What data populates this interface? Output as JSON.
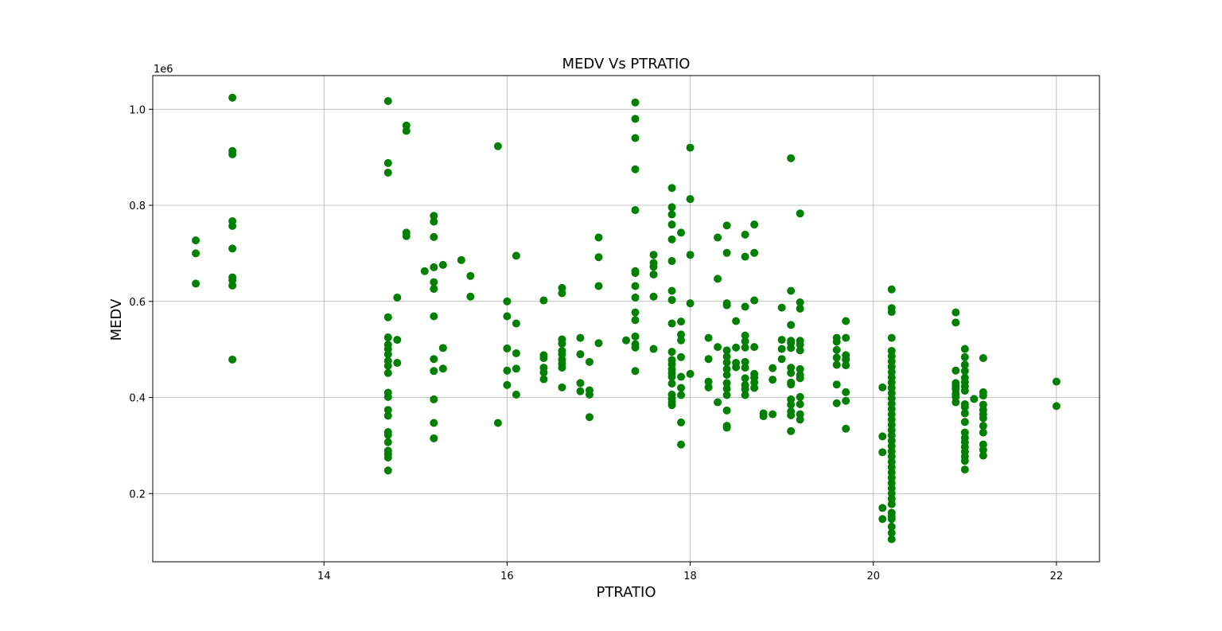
{
  "chart_data": {
    "type": "scatter",
    "title": "MEDV Vs PTRATIO",
    "xlabel": "PTRATIO",
    "ylabel": "MEDV",
    "y_offset_label": "1e6",
    "xlim": [
      12.13,
      22.47
    ],
    "ylim": [
      58000,
      1070000
    ],
    "x_ticks": [
      14,
      16,
      18,
      20,
      22
    ],
    "x_tick_labels": [
      "14",
      "16",
      "18",
      "20",
      "22"
    ],
    "y_ticks": [
      200000,
      400000,
      600000,
      800000,
      1000000
    ],
    "y_tick_labels": [
      "0.2",
      "0.4",
      "0.6",
      "0.8",
      "1.0"
    ],
    "grid": true,
    "marker_color": "#008000",
    "points": [
      [
        12.6,
        727000
      ],
      [
        12.6,
        700000
      ],
      [
        12.6,
        637000
      ],
      [
        13.0,
        1024000
      ],
      [
        13.0,
        913000
      ],
      [
        13.0,
        906000
      ],
      [
        13.0,
        767000
      ],
      [
        13.0,
        757000
      ],
      [
        13.0,
        710000
      ],
      [
        13.0,
        650000
      ],
      [
        13.0,
        644000
      ],
      [
        13.0,
        633000
      ],
      [
        13.0,
        479000
      ],
      [
        14.7,
        1017000
      ],
      [
        14.7,
        888000
      ],
      [
        14.7,
        868000
      ],
      [
        14.7,
        567000
      ],
      [
        14.7,
        525000
      ],
      [
        14.7,
        510000
      ],
      [
        14.7,
        501000
      ],
      [
        14.7,
        490000
      ],
      [
        14.7,
        476000
      ],
      [
        14.7,
        466000
      ],
      [
        14.7,
        451000
      ],
      [
        14.7,
        410000
      ],
      [
        14.7,
        401000
      ],
      [
        14.7,
        374000
      ],
      [
        14.7,
        362000
      ],
      [
        14.7,
        328000
      ],
      [
        14.7,
        322000
      ],
      [
        14.7,
        307000
      ],
      [
        14.7,
        289000
      ],
      [
        14.7,
        282000
      ],
      [
        14.7,
        275000
      ],
      [
        14.7,
        248000
      ],
      [
        14.8,
        608000
      ],
      [
        14.8,
        520000
      ],
      [
        14.8,
        472000
      ],
      [
        14.9,
        966000
      ],
      [
        14.9,
        955000
      ],
      [
        14.9,
        743000
      ],
      [
        14.9,
        736000
      ],
      [
        15.1,
        663000
      ],
      [
        15.2,
        778000
      ],
      [
        15.2,
        766000
      ],
      [
        15.2,
        734000
      ],
      [
        15.2,
        671000
      ],
      [
        15.2,
        640000
      ],
      [
        15.2,
        626000
      ],
      [
        15.2,
        569000
      ],
      [
        15.2,
        480000
      ],
      [
        15.2,
        455000
      ],
      [
        15.2,
        396000
      ],
      [
        15.2,
        347000
      ],
      [
        15.2,
        315000
      ],
      [
        15.3,
        676000
      ],
      [
        15.3,
        503000
      ],
      [
        15.3,
        460000
      ],
      [
        15.5,
        686000
      ],
      [
        15.6,
        653000
      ],
      [
        15.6,
        610000
      ],
      [
        15.9,
        923000
      ],
      [
        15.9,
        347000
      ],
      [
        16.0,
        600000
      ],
      [
        16.0,
        569000
      ],
      [
        16.0,
        502000
      ],
      [
        16.0,
        456000
      ],
      [
        16.0,
        426000
      ],
      [
        16.1,
        695000
      ],
      [
        16.1,
        554000
      ],
      [
        16.1,
        492000
      ],
      [
        16.1,
        460000
      ],
      [
        16.1,
        406000
      ],
      [
        16.4,
        602000
      ],
      [
        16.4,
        488000
      ],
      [
        16.4,
        482000
      ],
      [
        16.4,
        462000
      ],
      [
        16.4,
        452000
      ],
      [
        16.4,
        438000
      ],
      [
        16.6,
        628000
      ],
      [
        16.6,
        617000
      ],
      [
        16.6,
        521000
      ],
      [
        16.6,
        512000
      ],
      [
        16.6,
        497000
      ],
      [
        16.6,
        490000
      ],
      [
        16.6,
        479000
      ],
      [
        16.6,
        470000
      ],
      [
        16.6,
        462000
      ],
      [
        16.6,
        421000
      ],
      [
        16.8,
        524000
      ],
      [
        16.8,
        490000
      ],
      [
        16.8,
        430000
      ],
      [
        16.8,
        413000
      ],
      [
        16.9,
        474000
      ],
      [
        16.9,
        415000
      ],
      [
        16.9,
        406000
      ],
      [
        16.9,
        359000
      ],
      [
        17.0,
        733000
      ],
      [
        17.0,
        692000
      ],
      [
        17.0,
        632000
      ],
      [
        17.0,
        513000
      ],
      [
        17.3,
        519000
      ],
      [
        17.4,
        1014000
      ],
      [
        17.4,
        980000
      ],
      [
        17.4,
        940000
      ],
      [
        17.4,
        875000
      ],
      [
        17.4,
        790000
      ],
      [
        17.4,
        663000
      ],
      [
        17.4,
        659000
      ],
      [
        17.4,
        632000
      ],
      [
        17.4,
        608000
      ],
      [
        17.4,
        577000
      ],
      [
        17.4,
        561000
      ],
      [
        17.4,
        527000
      ],
      [
        17.4,
        511000
      ],
      [
        17.4,
        504000
      ],
      [
        17.4,
        455000
      ],
      [
        17.6,
        697000
      ],
      [
        17.6,
        680000
      ],
      [
        17.6,
        672000
      ],
      [
        17.6,
        656000
      ],
      [
        17.6,
        610000
      ],
      [
        17.6,
        501000
      ],
      [
        17.8,
        836000
      ],
      [
        17.8,
        796000
      ],
      [
        17.8,
        781000
      ],
      [
        17.8,
        760000
      ],
      [
        17.8,
        729000
      ],
      [
        17.8,
        684000
      ],
      [
        17.8,
        622000
      ],
      [
        17.8,
        603000
      ],
      [
        17.8,
        554000
      ],
      [
        17.8,
        495000
      ],
      [
        17.8,
        478000
      ],
      [
        17.8,
        469000
      ],
      [
        17.8,
        459000
      ],
      [
        17.8,
        451000
      ],
      [
        17.8,
        443000
      ],
      [
        17.8,
        429000
      ],
      [
        17.8,
        406000
      ],
      [
        17.8,
        397000
      ],
      [
        17.8,
        390000
      ],
      [
        17.8,
        384000
      ],
      [
        17.9,
        743000
      ],
      [
        17.9,
        558000
      ],
      [
        17.9,
        531000
      ],
      [
        17.9,
        519000
      ],
      [
        17.9,
        484000
      ],
      [
        17.9,
        443000
      ],
      [
        17.9,
        420000
      ],
      [
        17.9,
        405000
      ],
      [
        17.9,
        348000
      ],
      [
        17.9,
        302000
      ],
      [
        18.0,
        920000
      ],
      [
        18.0,
        813000
      ],
      [
        18.0,
        697000
      ],
      [
        18.0,
        596000
      ],
      [
        18.0,
        449000
      ],
      [
        18.2,
        524000
      ],
      [
        18.2,
        480000
      ],
      [
        18.2,
        433000
      ],
      [
        18.2,
        421000
      ],
      [
        18.3,
        733000
      ],
      [
        18.3,
        647000
      ],
      [
        18.3,
        505000
      ],
      [
        18.3,
        390000
      ],
      [
        18.4,
        758000
      ],
      [
        18.4,
        701000
      ],
      [
        18.4,
        596000
      ],
      [
        18.4,
        592000
      ],
      [
        18.4,
        498000
      ],
      [
        18.4,
        485000
      ],
      [
        18.4,
        473000
      ],
      [
        18.4,
        459000
      ],
      [
        18.4,
        447000
      ],
      [
        18.4,
        430000
      ],
      [
        18.4,
        418000
      ],
      [
        18.4,
        405000
      ],
      [
        18.4,
        373000
      ],
      [
        18.4,
        341000
      ],
      [
        18.4,
        337000
      ],
      [
        18.5,
        559000
      ],
      [
        18.5,
        504000
      ],
      [
        18.5,
        472000
      ],
      [
        18.5,
        463000
      ],
      [
        18.6,
        739000
      ],
      [
        18.6,
        693000
      ],
      [
        18.6,
        589000
      ],
      [
        18.6,
        529000
      ],
      [
        18.6,
        517000
      ],
      [
        18.6,
        504000
      ],
      [
        18.6,
        474000
      ],
      [
        18.6,
        462000
      ],
      [
        18.6,
        440000
      ],
      [
        18.6,
        426000
      ],
      [
        18.6,
        417000
      ],
      [
        18.6,
        405000
      ],
      [
        18.7,
        760000
      ],
      [
        18.7,
        701000
      ],
      [
        18.7,
        602000
      ],
      [
        18.7,
        505000
      ],
      [
        18.7,
        449000
      ],
      [
        18.7,
        441000
      ],
      [
        18.7,
        431000
      ],
      [
        18.7,
        420000
      ],
      [
        18.8,
        367000
      ],
      [
        18.8,
        361000
      ],
      [
        18.9,
        461000
      ],
      [
        18.9,
        437000
      ],
      [
        18.9,
        365000
      ],
      [
        19.0,
        587000
      ],
      [
        19.0,
        520000
      ],
      [
        19.0,
        501000
      ],
      [
        19.0,
        480000
      ],
      [
        19.1,
        898000
      ],
      [
        19.1,
        622000
      ],
      [
        19.1,
        551000
      ],
      [
        19.1,
        518000
      ],
      [
        19.1,
        513000
      ],
      [
        19.1,
        503000
      ],
      [
        19.1,
        462000
      ],
      [
        19.1,
        451000
      ],
      [
        19.1,
        431000
      ],
      [
        19.1,
        427000
      ],
      [
        19.1,
        396000
      ],
      [
        19.1,
        385000
      ],
      [
        19.1,
        371000
      ],
      [
        19.1,
        363000
      ],
      [
        19.1,
        330000
      ],
      [
        19.2,
        783000
      ],
      [
        19.2,
        598000
      ],
      [
        19.2,
        585000
      ],
      [
        19.2,
        518000
      ],
      [
        19.2,
        510000
      ],
      [
        19.2,
        498000
      ],
      [
        19.2,
        459000
      ],
      [
        19.2,
        447000
      ],
      [
        19.2,
        440000
      ],
      [
        19.2,
        401000
      ],
      [
        19.2,
        386000
      ],
      [
        19.2,
        365000
      ],
      [
        19.2,
        354000
      ],
      [
        19.6,
        524000
      ],
      [
        19.6,
        516000
      ],
      [
        19.6,
        499000
      ],
      [
        19.6,
        483000
      ],
      [
        19.6,
        468000
      ],
      [
        19.6,
        427000
      ],
      [
        19.6,
        388000
      ],
      [
        19.7,
        559000
      ],
      [
        19.7,
        524000
      ],
      [
        19.7,
        488000
      ],
      [
        19.7,
        479000
      ],
      [
        19.7,
        467000
      ],
      [
        19.7,
        411000
      ],
      [
        19.7,
        393000
      ],
      [
        19.7,
        335000
      ],
      [
        20.1,
        421000
      ],
      [
        20.1,
        319000
      ],
      [
        20.1,
        286000
      ],
      [
        20.1,
        170000
      ],
      [
        20.1,
        147000
      ],
      [
        20.2,
        625000
      ],
      [
        20.2,
        586000
      ],
      [
        20.2,
        578000
      ],
      [
        20.2,
        524000
      ],
      [
        20.2,
        497000
      ],
      [
        20.2,
        486000
      ],
      [
        20.2,
        475000
      ],
      [
        20.2,
        464000
      ],
      [
        20.2,
        453000
      ],
      [
        20.2,
        442000
      ],
      [
        20.2,
        431000
      ],
      [
        20.2,
        420000
      ],
      [
        20.2,
        409000
      ],
      [
        20.2,
        398000
      ],
      [
        20.2,
        387000
      ],
      [
        20.2,
        376000
      ],
      [
        20.2,
        365000
      ],
      [
        20.2,
        354000
      ],
      [
        20.2,
        343000
      ],
      [
        20.2,
        332000
      ],
      [
        20.2,
        321000
      ],
      [
        20.2,
        310000
      ],
      [
        20.2,
        299000
      ],
      [
        20.2,
        288000
      ],
      [
        20.2,
        277000
      ],
      [
        20.2,
        266000
      ],
      [
        20.2,
        255000
      ],
      [
        20.2,
        244000
      ],
      [
        20.2,
        233000
      ],
      [
        20.2,
        222000
      ],
      [
        20.2,
        211000
      ],
      [
        20.2,
        200000
      ],
      [
        20.2,
        189000
      ],
      [
        20.2,
        178000
      ],
      [
        20.2,
        160000
      ],
      [
        20.2,
        152000
      ],
      [
        20.2,
        147000
      ],
      [
        20.2,
        131000
      ],
      [
        20.2,
        118000
      ],
      [
        20.2,
        105000
      ],
      [
        20.9,
        577000
      ],
      [
        20.9,
        556000
      ],
      [
        20.9,
        456000
      ],
      [
        20.9,
        430000
      ],
      [
        20.9,
        423000
      ],
      [
        20.9,
        417000
      ],
      [
        20.9,
        408000
      ],
      [
        20.9,
        401000
      ],
      [
        20.9,
        390000
      ],
      [
        21.0,
        501000
      ],
      [
        21.0,
        484000
      ],
      [
        21.0,
        468000
      ],
      [
        21.0,
        455000
      ],
      [
        21.0,
        441000
      ],
      [
        21.0,
        432000
      ],
      [
        21.0,
        423000
      ],
      [
        21.0,
        414000
      ],
      [
        21.0,
        386000
      ],
      [
        21.0,
        380000
      ],
      [
        21.0,
        367000
      ],
      [
        21.0,
        349000
      ],
      [
        21.0,
        327000
      ],
      [
        21.0,
        316000
      ],
      [
        21.0,
        307000
      ],
      [
        21.0,
        297000
      ],
      [
        21.0,
        287000
      ],
      [
        21.0,
        277000
      ],
      [
        21.0,
        268000
      ],
      [
        21.0,
        250000
      ],
      [
        21.1,
        397000
      ],
      [
        21.2,
        482000
      ],
      [
        21.2,
        411000
      ],
      [
        21.2,
        404000
      ],
      [
        21.2,
        385000
      ],
      [
        21.2,
        374000
      ],
      [
        21.2,
        365000
      ],
      [
        21.2,
        357000
      ],
      [
        21.2,
        341000
      ],
      [
        21.2,
        327000
      ],
      [
        21.2,
        302000
      ],
      [
        21.2,
        291000
      ],
      [
        21.2,
        279000
      ],
      [
        22.0,
        433000
      ],
      [
        22.0,
        382000
      ]
    ]
  }
}
